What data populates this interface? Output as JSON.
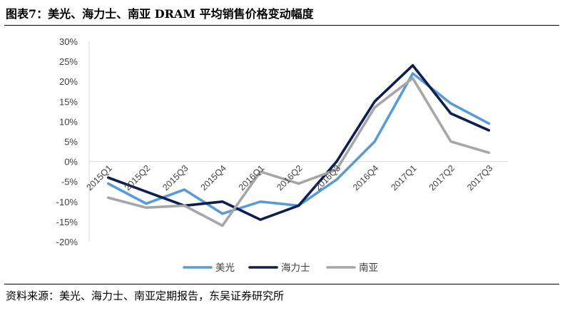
{
  "figure": {
    "title": "图表7：美光、海力士、南亚 DRAM 平均销售价格变动幅度",
    "source": "资料来源：美光、海力士、南亚定期报告，东吴证券研究所"
  },
  "chart_data": {
    "type": "line",
    "title": "",
    "xlabel": "",
    "ylabel": "",
    "categories": [
      "2015Q1",
      "2015Q2",
      "2015Q3",
      "2015Q4",
      "2016Q1",
      "2016Q2",
      "2016Q3",
      "2016Q4",
      "2017Q1",
      "2017Q2",
      "2017Q3"
    ],
    "y_ticks": [
      "30%",
      "25%",
      "20%",
      "15%",
      "10%",
      "5%",
      "0%",
      "-5%",
      "-10%",
      "-15%",
      "-20%"
    ],
    "ylim": [
      -20,
      30
    ],
    "y_unit": "%",
    "grid": false,
    "legend_position": "bottom",
    "series": [
      {
        "name": "美光",
        "color": "#5b9bd5",
        "values": [
          -5.5,
          -10.5,
          -7.0,
          -13.0,
          -10.0,
          -11.0,
          -4.5,
          5.0,
          22.0,
          14.5,
          9.5
        ]
      },
      {
        "name": "海力士",
        "color": "#0d1f4f",
        "values": [
          -4.0,
          -7.5,
          -11.0,
          -10.0,
          -14.5,
          -11.0,
          0.0,
          15.0,
          24.0,
          12.0,
          7.8
        ]
      },
      {
        "name": "南亚",
        "color": "#a6a6a6",
        "values": [
          -9.0,
          -11.5,
          -11.0,
          -16.0,
          -2.5,
          -5.5,
          -2.0,
          13.5,
          20.8,
          5.0,
          2.2
        ]
      }
    ]
  }
}
